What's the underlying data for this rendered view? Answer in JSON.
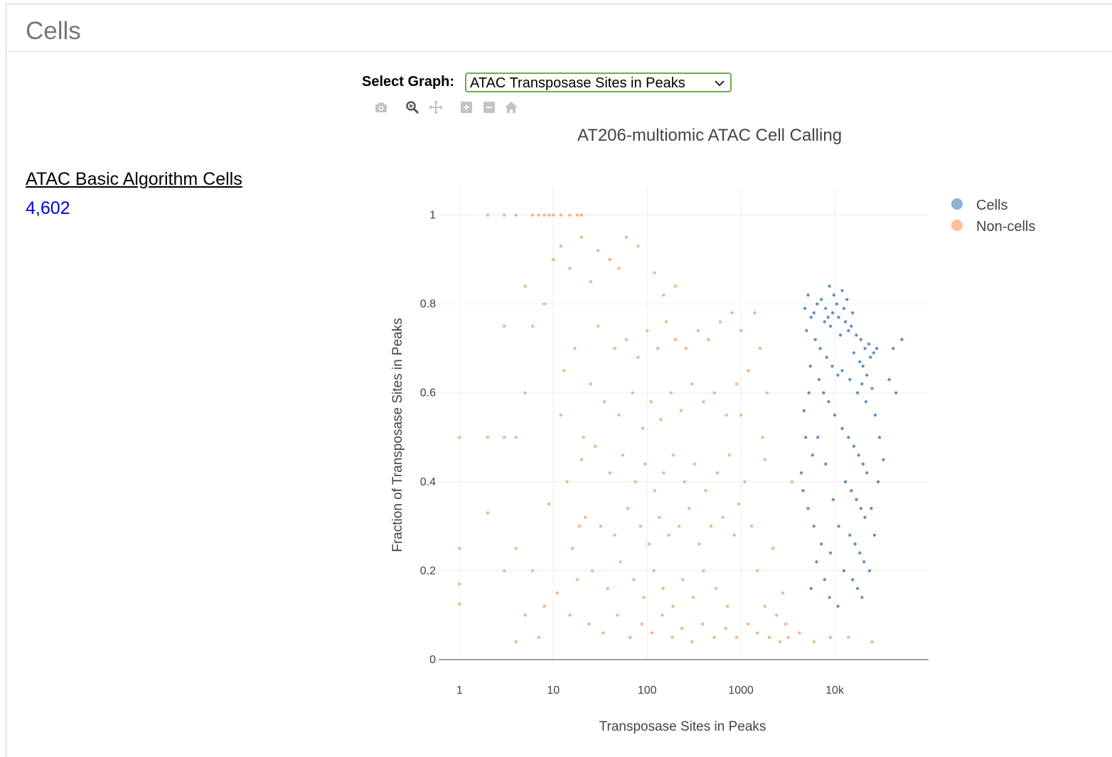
{
  "panel": {
    "title": "Cells"
  },
  "metric": {
    "label": "ATAC Basic Algorithm Cells",
    "value": "4,602"
  },
  "graph_select": {
    "label": "Select Graph:",
    "selected": "ATAC Transposase Sites in Peaks"
  },
  "modebar": {
    "buttons": [
      {
        "icon": "camera-icon"
      },
      {
        "icon": "zoom-icon"
      },
      {
        "icon": "pan-icon"
      },
      {
        "icon": "zoom-in-icon"
      },
      {
        "icon": "zoom-out-icon"
      },
      {
        "icon": "home-icon"
      }
    ]
  },
  "chart_data": {
    "type": "scatter",
    "title": "AT206-multiomic ATAC Cell Calling",
    "xlabel": "Transposase Sites in Peaks",
    "ylabel": "Fraction of Transposase Sites in Peaks",
    "xscale": "log",
    "xlim": [
      0.6,
      100000
    ],
    "ylim": [
      0,
      1.06
    ],
    "xticks": [
      {
        "value": 1,
        "label": "1"
      },
      {
        "value": 10,
        "label": "10"
      },
      {
        "value": 100,
        "label": "100"
      },
      {
        "value": 1000,
        "label": "1000"
      },
      {
        "value": 10000,
        "label": "10k"
      }
    ],
    "yticks": [
      {
        "value": 0,
        "label": "0"
      },
      {
        "value": 0.2,
        "label": "0.2"
      },
      {
        "value": 0.4,
        "label": "0.4"
      },
      {
        "value": 0.6,
        "label": "0.6"
      },
      {
        "value": 0.8,
        "label": "0.8"
      },
      {
        "value": 1,
        "label": "1"
      }
    ],
    "grid": true,
    "legend_position": "top-right",
    "series": [
      {
        "name": "Cells",
        "color": "#2e6fb0",
        "legend_color": "#8fb2d6",
        "points": [
          [
            5200,
            0.82
          ],
          [
            6500,
            0.8
          ],
          [
            8000,
            0.79
          ],
          [
            9500,
            0.78
          ],
          [
            11000,
            0.77
          ],
          [
            13000,
            0.76
          ],
          [
            15000,
            0.75
          ],
          [
            7200,
            0.81
          ],
          [
            10500,
            0.8
          ],
          [
            12500,
            0.79
          ],
          [
            6000,
            0.78
          ],
          [
            8500,
            0.77
          ],
          [
            14000,
            0.74
          ],
          [
            17000,
            0.73
          ],
          [
            19000,
            0.72
          ],
          [
            21000,
            0.7
          ],
          [
            23000,
            0.71
          ],
          [
            16000,
            0.69
          ],
          [
            18500,
            0.67
          ],
          [
            20000,
            0.66
          ],
          [
            9000,
            0.75
          ],
          [
            11500,
            0.73
          ],
          [
            7800,
            0.76
          ],
          [
            5600,
            0.77
          ],
          [
            4800,
            0.79
          ],
          [
            13500,
            0.81
          ],
          [
            12000,
            0.83
          ],
          [
            9800,
            0.82
          ],
          [
            8800,
            0.84
          ],
          [
            15500,
            0.78
          ],
          [
            24000,
            0.68
          ],
          [
            26000,
            0.69
          ],
          [
            28000,
            0.7
          ],
          [
            22000,
            0.64
          ],
          [
            19500,
            0.62
          ],
          [
            17500,
            0.6
          ],
          [
            21500,
            0.58
          ],
          [
            25000,
            0.61
          ],
          [
            14500,
            0.63
          ],
          [
            12000,
            0.65
          ],
          [
            5000,
            0.74
          ],
          [
            6200,
            0.72
          ],
          [
            7000,
            0.7
          ],
          [
            8200,
            0.68
          ],
          [
            9400,
            0.66
          ],
          [
            10800,
            0.64
          ],
          [
            5500,
            0.66
          ],
          [
            6800,
            0.63
          ],
          [
            7600,
            0.6
          ],
          [
            8600,
            0.58
          ],
          [
            10000,
            0.55
          ],
          [
            12000,
            0.52
          ],
          [
            14000,
            0.5
          ],
          [
            16000,
            0.48
          ],
          [
            18000,
            0.46
          ],
          [
            20000,
            0.44
          ],
          [
            22000,
            0.42
          ],
          [
            13000,
            0.4
          ],
          [
            15000,
            0.38
          ],
          [
            17000,
            0.36
          ],
          [
            19000,
            0.34
          ],
          [
            21000,
            0.32
          ],
          [
            11000,
            0.3
          ],
          [
            14500,
            0.28
          ],
          [
            16500,
            0.26
          ],
          [
            18500,
            0.24
          ],
          [
            20500,
            0.22
          ],
          [
            12500,
            0.2
          ],
          [
            15500,
            0.18
          ],
          [
            17500,
            0.16
          ],
          [
            19500,
            0.14
          ],
          [
            9000,
            0.24
          ],
          [
            7200,
            0.26
          ],
          [
            6000,
            0.3
          ],
          [
            5200,
            0.34
          ],
          [
            4600,
            0.38
          ],
          [
            4400,
            0.42
          ],
          [
            5800,
            0.46
          ],
          [
            6600,
            0.5
          ],
          [
            8000,
            0.44
          ],
          [
            9600,
            0.36
          ],
          [
            6400,
            0.22
          ],
          [
            7800,
            0.18
          ],
          [
            5600,
            0.16
          ],
          [
            8800,
            0.14
          ],
          [
            10800,
            0.12
          ],
          [
            4900,
            0.5
          ],
          [
            4700,
            0.56
          ],
          [
            5300,
            0.6
          ],
          [
            27000,
            0.55
          ],
          [
            30000,
            0.5
          ],
          [
            33000,
            0.45
          ],
          [
            29000,
            0.4
          ],
          [
            38000,
            0.63
          ],
          [
            45000,
            0.6
          ],
          [
            52000,
            0.72
          ],
          [
            42000,
            0.7
          ],
          [
            24500,
            0.34
          ],
          [
            26500,
            0.28
          ],
          [
            23500,
            0.2
          ]
        ]
      },
      {
        "name": "Non-cells",
        "color": "#f59a5c",
        "legend_color": "#fdbf96",
        "points": [
          [
            2,
            1
          ],
          [
            3,
            1
          ],
          [
            4,
            1
          ],
          [
            6,
            1
          ],
          [
            7,
            1
          ],
          [
            8,
            1
          ],
          [
            9,
            1
          ],
          [
            10,
            1
          ],
          [
            12,
            1
          ],
          [
            15,
            1
          ],
          [
            18,
            1
          ],
          [
            20,
            1
          ],
          [
            1,
            0.5
          ],
          [
            2,
            0.5
          ],
          [
            3,
            0.5
          ],
          [
            4,
            0.5
          ],
          [
            1,
            0.25
          ],
          [
            1,
            0.17
          ],
          [
            1,
            0.125
          ],
          [
            3,
            0.75
          ],
          [
            2,
            0.33
          ],
          [
            3,
            0.2
          ],
          [
            4,
            0.25
          ],
          [
            5,
            0.84
          ],
          [
            5,
            0.6
          ],
          [
            6,
            0.75
          ],
          [
            8,
            0.8
          ],
          [
            10,
            0.9
          ],
          [
            12,
            0.93
          ],
          [
            15,
            0.88
          ],
          [
            20,
            0.95
          ],
          [
            25,
            0.85
          ],
          [
            30,
            0.92
          ],
          [
            40,
            0.9
          ],
          [
            50,
            0.88
          ],
          [
            60,
            0.95
          ],
          [
            80,
            0.93
          ],
          [
            120,
            0.87
          ],
          [
            150,
            0.82
          ],
          [
            200,
            0.84
          ],
          [
            30,
            0.75
          ],
          [
            45,
            0.7
          ],
          [
            60,
            0.72
          ],
          [
            80,
            0.68
          ],
          [
            100,
            0.74
          ],
          [
            130,
            0.7
          ],
          [
            160,
            0.76
          ],
          [
            200,
            0.72
          ],
          [
            260,
            0.7
          ],
          [
            350,
            0.74
          ],
          [
            450,
            0.72
          ],
          [
            600,
            0.76
          ],
          [
            800,
            0.78
          ],
          [
            1000,
            0.74
          ],
          [
            25,
            0.62
          ],
          [
            35,
            0.58
          ],
          [
            50,
            0.55
          ],
          [
            70,
            0.6
          ],
          [
            90,
            0.52
          ],
          [
            110,
            0.58
          ],
          [
            140,
            0.54
          ],
          [
            180,
            0.6
          ],
          [
            230,
            0.56
          ],
          [
            300,
            0.62
          ],
          [
            400,
            0.58
          ],
          [
            520,
            0.6
          ],
          [
            700,
            0.55
          ],
          [
            900,
            0.62
          ],
          [
            20,
            0.45
          ],
          [
            28,
            0.48
          ],
          [
            40,
            0.42
          ],
          [
            55,
            0.46
          ],
          [
            75,
            0.4
          ],
          [
            95,
            0.44
          ],
          [
            120,
            0.38
          ],
          [
            150,
            0.42
          ],
          [
            190,
            0.46
          ],
          [
            250,
            0.4
          ],
          [
            320,
            0.44
          ],
          [
            420,
            0.38
          ],
          [
            560,
            0.42
          ],
          [
            750,
            0.46
          ],
          [
            22,
            0.32
          ],
          [
            32,
            0.3
          ],
          [
            45,
            0.28
          ],
          [
            62,
            0.34
          ],
          [
            85,
            0.3
          ],
          [
            105,
            0.26
          ],
          [
            135,
            0.32
          ],
          [
            170,
            0.28
          ],
          [
            220,
            0.3
          ],
          [
            280,
            0.34
          ],
          [
            360,
            0.26
          ],
          [
            480,
            0.3
          ],
          [
            640,
            0.32
          ],
          [
            850,
            0.28
          ],
          [
            18,
            0.18
          ],
          [
            26,
            0.2
          ],
          [
            38,
            0.16
          ],
          [
            52,
            0.22
          ],
          [
            72,
            0.18
          ],
          [
            92,
            0.14
          ],
          [
            118,
            0.2
          ],
          [
            148,
            0.16
          ],
          [
            188,
            0.12
          ],
          [
            240,
            0.18
          ],
          [
            310,
            0.14
          ],
          [
            400,
            0.2
          ],
          [
            540,
            0.16
          ],
          [
            720,
            0.12
          ],
          [
            15,
            0.1
          ],
          [
            24,
            0.08
          ],
          [
            34,
            0.06
          ],
          [
            48,
            0.1
          ],
          [
            66,
            0.05
          ],
          [
            88,
            0.08
          ],
          [
            112,
            0.06
          ],
          [
            145,
            0.1
          ],
          [
            185,
            0.05
          ],
          [
            235,
            0.07
          ],
          [
            300,
            0.04
          ],
          [
            390,
            0.08
          ],
          [
            520,
            0.05
          ],
          [
            690,
            0.07
          ],
          [
            900,
            0.05
          ],
          [
            1200,
            0.08
          ],
          [
            1500,
            0.06
          ],
          [
            2000,
            0.05
          ],
          [
            2600,
            0.04
          ],
          [
            3200,
            0.05
          ],
          [
            4200,
            0.06
          ],
          [
            6000,
            0.04
          ],
          [
            9000,
            0.05
          ],
          [
            14000,
            0.05
          ],
          [
            25000,
            0.04
          ],
          [
            1800,
            0.12
          ],
          [
            2400,
            0.1
          ],
          [
            3000,
            0.08
          ],
          [
            12,
            0.55
          ],
          [
            14,
            0.4
          ],
          [
            16,
            0.25
          ],
          [
            11,
            0.15
          ],
          [
            9,
            0.35
          ],
          [
            8,
            0.12
          ],
          [
            7,
            0.05
          ],
          [
            6,
            0.2
          ],
          [
            5,
            0.1
          ],
          [
            4,
            0.04
          ],
          [
            13,
            0.65
          ],
          [
            17,
            0.7
          ],
          [
            19,
            0.3
          ],
          [
            21,
            0.5
          ],
          [
            1100,
            0.4
          ],
          [
            1300,
            0.3
          ],
          [
            1500,
            0.2
          ],
          [
            1700,
            0.5
          ],
          [
            1900,
            0.6
          ],
          [
            2200,
            0.25
          ],
          [
            2800,
            0.15
          ],
          [
            3500,
            0.4
          ],
          [
            1600,
            0.7
          ],
          [
            1400,
            0.78
          ],
          [
            1200,
            0.65
          ],
          [
            1000,
            0.55
          ],
          [
            950,
            0.35
          ],
          [
            1800,
            0.45
          ]
        ]
      }
    ]
  }
}
